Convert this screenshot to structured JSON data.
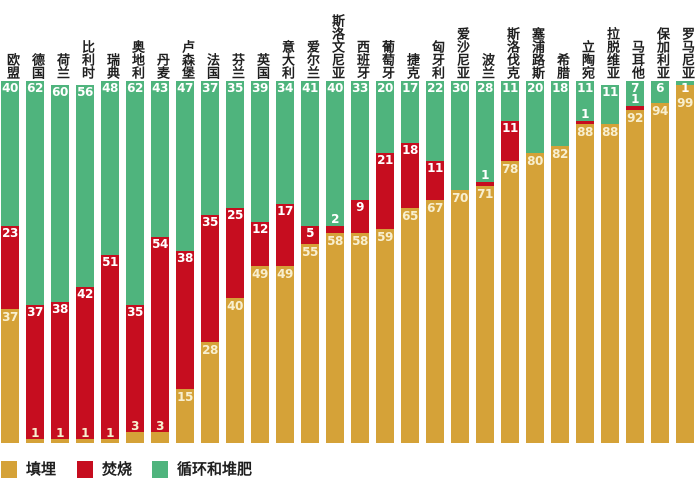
{
  "legend": {
    "items": [
      {
        "key": "landfill",
        "label": "填埋",
        "color": "#d5a238"
      },
      {
        "key": "incineration",
        "label": "焚烧",
        "color": "#c60d1f"
      },
      {
        "key": "recycling",
        "label": "循环和堆肥",
        "color": "#4fb47d"
      }
    ]
  },
  "chart_data": {
    "type": "bar",
    "subtype": "stacked-percent",
    "unit": "%",
    "ylim": [
      0,
      100
    ],
    "grid": false,
    "legend_position": "bottom",
    "value_labels": true,
    "category_label_orientation": "vertical",
    "categories": [
      "欧盟",
      "德国",
      "荷兰",
      "比利时",
      "瑞典",
      "奥地利",
      "丹麦",
      "卢森堡",
      "法国",
      "芬兰",
      "英国",
      "意大利",
      "爱尔兰",
      "斯洛文尼亚",
      "西班牙",
      "葡萄牙",
      "捷克",
      "匈牙利",
      "爱沙尼亚",
      "波兰",
      "斯洛伐克",
      "塞浦路斯",
      "希腊",
      "立陶宛",
      "拉脱维亚",
      "马耳他",
      "保加利亚",
      "罗马尼亚"
    ],
    "series": [
      {
        "name": "填埋",
        "color": "#d5a238",
        "values": [
          37,
          1,
          1,
          1,
          1,
          3,
          3,
          15,
          28,
          40,
          49,
          49,
          55,
          58,
          58,
          59,
          65,
          67,
          70,
          71,
          78,
          80,
          82,
          88,
          88,
          92,
          94,
          99
        ]
      },
      {
        "name": "焚烧",
        "color": "#c60d1f",
        "values": [
          23,
          37,
          38,
          42,
          51,
          35,
          54,
          38,
          35,
          25,
          12,
          17,
          5,
          2,
          9,
          21,
          18,
          11,
          0,
          1,
          11,
          0,
          0,
          1,
          0,
          1,
          0,
          0
        ]
      },
      {
        "name": "循环和堆肥",
        "color": "#4fb47d",
        "values": [
          40,
          62,
          60,
          56,
          48,
          62,
          43,
          47,
          37,
          35,
          39,
          34,
          41,
          40,
          33,
          20,
          17,
          22,
          30,
          28,
          11,
          20,
          18,
          11,
          11,
          7,
          6,
          1
        ]
      }
    ]
  }
}
